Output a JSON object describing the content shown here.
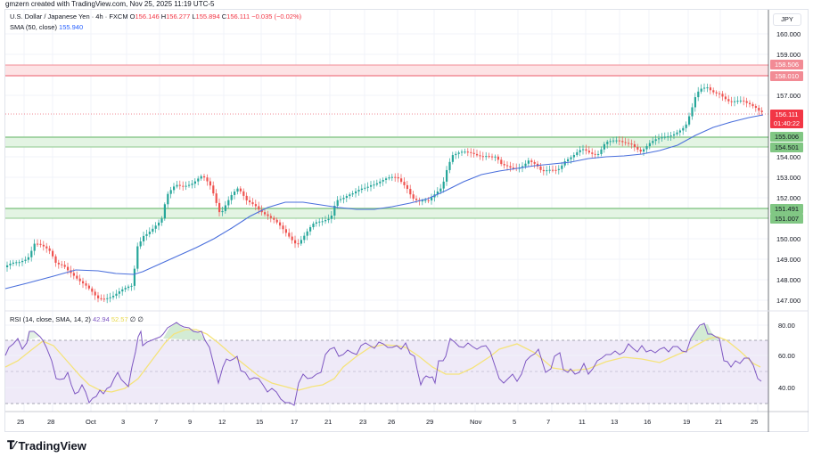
{
  "credit": "gmzern created with TradingView.com, Nov 25, 2025 11:19 UTC-5",
  "legend": {
    "symbol": "U.S. Dollar / Japanese Yen · 4h · FXCM",
    "o_label": "O",
    "o": "156.146",
    "h_label": "H",
    "h": "156.277",
    "l_label": "L",
    "l": "155.894",
    "c_label": "C",
    "c": "156.111",
    "change": "−0.035 (−0.02%)",
    "sma_label": "SMA (50, close)",
    "sma_value": "155.940",
    "rsi_label": "RSI (14, close, SMA, 14, 2)",
    "rsi_value": "42.94",
    "rsi_sma_value": "52.57",
    "rsi_extra": "∅ ∅"
  },
  "currency": "JPY",
  "price_axis": [
    "160.000",
    "159.000",
    "157.000",
    "154.000",
    "153.000",
    "152.000",
    "150.000",
    "149.000",
    "148.000",
    "147.000"
  ],
  "price_tags": {
    "resistance_top": "158.506",
    "resistance_bottom": "158.010",
    "current_price": "156.111",
    "countdown": "01:40:22",
    "support1_top": "155.006",
    "support1_bottom": "154.501",
    "support2_top": "151.491",
    "support2_bottom": "151.007"
  },
  "rsi_axis": [
    "80.00",
    "60.00",
    "40.00"
  ],
  "time_axis": [
    "25",
    "28",
    "Oct",
    "3",
    "7",
    "9",
    "12",
    "15",
    "17",
    "21",
    "23",
    "26",
    "29",
    "Nov",
    "5",
    "7",
    "11",
    "13",
    "16",
    "19",
    "21",
    "25"
  ],
  "logo": "TradingView",
  "colors": {
    "up": "#26a69a",
    "down": "#ef5350",
    "sma": "#2962ff",
    "rsi": "#7e57c2",
    "rsi_sma": "#f5e37a",
    "resistance_zone": "#f8bbbf",
    "support_zone": "#c8e6c9"
  },
  "chart_data": [
    {
      "type": "candlestick",
      "title": "U.S. Dollar / Japanese Yen · 4h · FXCM",
      "ylabel": "JPY",
      "ylim": [
        146.5,
        160.5
      ],
      "x": [
        "Sep 25",
        "Sep 28",
        "Oct 1",
        "Oct 3",
        "Oct 7",
        "Oct 9",
        "Oct 12",
        "Oct 15",
        "Oct 17",
        "Oct 21",
        "Oct 23",
        "Oct 26",
        "Oct 29",
        "Nov 1",
        "Nov 5",
        "Nov 7",
        "Nov 11",
        "Nov 13",
        "Nov 16",
        "Nov 19",
        "Nov 21",
        "Nov 25"
      ],
      "approx_close": [
        148.8,
        149.9,
        147.6,
        147.4,
        150.7,
        152.9,
        152.3,
        151.6,
        149.8,
        151.9,
        152.6,
        153.1,
        152.0,
        154.2,
        153.8,
        153.5,
        154.4,
        154.5,
        154.8,
        157.4,
        156.8,
        156.1
      ],
      "ohlc_last": {
        "open": 156.146,
        "high": 156.277,
        "low": 155.894,
        "close": 156.111,
        "change": -0.035,
        "change_pct": -0.02
      },
      "series": [
        {
          "name": "SMA (50, close)",
          "last": 155.94,
          "approx_values": [
            148.0,
            148.4,
            148.5,
            148.5,
            149.2,
            150.0,
            150.6,
            151.7,
            151.8,
            151.6,
            151.6,
            151.8,
            152.2,
            152.9,
            153.3,
            153.6,
            153.9,
            154.0,
            154.2,
            154.8,
            155.5,
            155.9
          ]
        }
      ],
      "zones": [
        {
          "name": "resistance",
          "top": 158.506,
          "bottom": 158.01,
          "color": "red"
        },
        {
          "name": "support 1",
          "top": 155.006,
          "bottom": 154.501,
          "color": "green"
        },
        {
          "name": "support 2",
          "top": 151.491,
          "bottom": 151.007,
          "color": "green"
        }
      ],
      "yticks": [
        147,
        148,
        149,
        150,
        152,
        153,
        154,
        157,
        159,
        160
      ]
    },
    {
      "type": "line",
      "title": "RSI (14, close, SMA, 14, 2)",
      "ylim": [
        25,
        85
      ],
      "yticks": [
        40,
        60,
        80
      ],
      "bands": {
        "upper": 70,
        "middle": 50,
        "lower": 30
      },
      "series": [
        {
          "name": "RSI",
          "last": 42.94
        },
        {
          "name": "RSI SMA",
          "last": 52.57
        }
      ]
    }
  ]
}
